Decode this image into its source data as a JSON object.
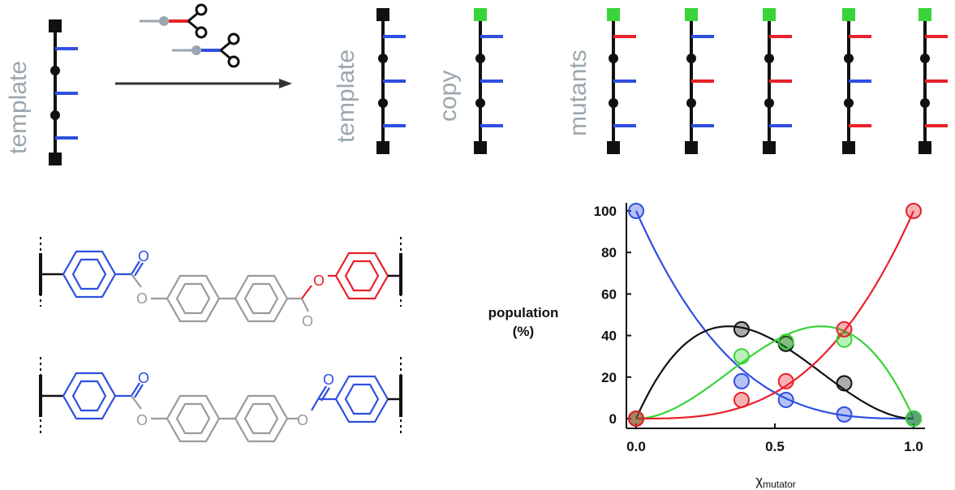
{
  "labels": {
    "template_left": "template",
    "template_right": "template",
    "copy": "copy",
    "mutants": "mutants"
  },
  "colors": {
    "blue": "#2f4fe0",
    "red": "#e8202a",
    "green": "#38d43a",
    "black": "#111111",
    "gray": "#9aa7ae",
    "chem_gray": "#9a9a9a"
  },
  "chains": {
    "template_left": [
      "blue",
      "blue",
      "blue"
    ],
    "template_right": [
      "blue",
      "blue",
      "blue"
    ],
    "copy": [
      "blue",
      "blue",
      "blue"
    ],
    "mutants": [
      [
        "red",
        "blue",
        "blue"
      ],
      [
        "blue",
        "red",
        "blue"
      ],
      [
        "red",
        "red",
        "blue"
      ],
      [
        "red",
        "blue",
        "red"
      ],
      [
        "red",
        "red",
        "red"
      ]
    ]
  },
  "atoms": {
    "oxygen": "O"
  },
  "chart_data": {
    "type": "scatter",
    "ylabel_line1": "population",
    "ylabel_line2": "(%)",
    "xlabel_main": "χ",
    "xlabel_sub": "mutator",
    "xlim": [
      0,
      1
    ],
    "ylim": [
      0,
      100
    ],
    "xticks": [
      "0.0",
      "0.5",
      "1.0"
    ],
    "yticks": [
      "0",
      "20",
      "40",
      "60",
      "80",
      "100"
    ],
    "series": [
      {
        "color": "#2f4fe0",
        "x": [
          0.0,
          0.38,
          0.54,
          0.75,
          1.0
        ],
        "y": [
          100,
          18,
          9,
          2,
          0
        ]
      },
      {
        "color": "#111111",
        "x": [
          0.0,
          0.38,
          0.54,
          0.75,
          1.0
        ],
        "y": [
          0,
          43,
          36,
          17,
          0
        ]
      },
      {
        "color": "#38d43a",
        "x": [
          0.0,
          0.38,
          0.54,
          0.75,
          1.0
        ],
        "y": [
          0,
          30,
          37,
          38,
          0
        ]
      },
      {
        "color": "#e8202a",
        "x": [
          0.0,
          0.38,
          0.54,
          0.75,
          1.0
        ],
        "y": [
          0,
          9,
          18,
          43,
          100
        ]
      }
    ]
  }
}
